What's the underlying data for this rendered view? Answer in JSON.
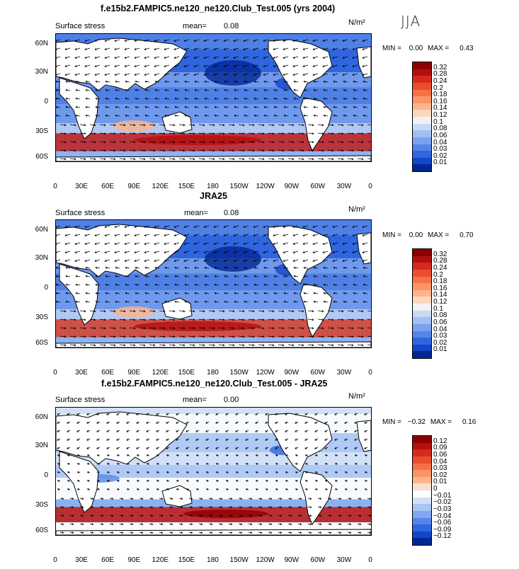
{
  "season": "JJA",
  "x_ticks": [
    "0",
    "30E",
    "60E",
    "90E",
    "120E",
    "150E",
    "180",
    "150W",
    "120W",
    "90W",
    "60W",
    "30W",
    "0"
  ],
  "y_ticks": [
    "60N",
    "30N",
    "0",
    "30S",
    "60S"
  ],
  "panels": [
    {
      "title": "f.e15b2.FAMPIC5.ne120_ne120.Club_Test.005 (yrs 2004)",
      "label": "Surface stress",
      "mean_label": "mean=",
      "mean_value": "0.08",
      "units": "N/m²",
      "min_label": "MIN =",
      "min_value": "0.00",
      "max_label": "MAX =",
      "max_value": "0.43",
      "colorbar_labels": [
        "0.32",
        "0.28",
        "0.24",
        "0.2",
        "0.18",
        "0.16",
        "0.14",
        "0.12",
        "0.1",
        "0.08",
        "0.06",
        "0.04",
        "0.03",
        "0.02",
        "0.01"
      ],
      "colors": [
        "#8b0000",
        "#b30f0f",
        "#d42b1e",
        "#ea4e2d",
        "#f57146",
        "#fb9466",
        "#fdb48d",
        "#fdd6bf",
        "#f3f2f3",
        "#c8d9f6",
        "#a0bff3",
        "#7aa2ee",
        "#5585e8",
        "#2f66df",
        "#1346c8",
        "#022793"
      ]
    },
    {
      "title": "JRA25",
      "label": "Surface stress",
      "mean_label": "mean=",
      "mean_value": "0.08",
      "units": "N/m²",
      "min_label": "MIN =",
      "min_value": "0.00",
      "max_label": "MAX =",
      "max_value": "0.70",
      "colorbar_labels": [
        "0.32",
        "0.28",
        "0.24",
        "0.2",
        "0.18",
        "0.16",
        "0.14",
        "0.12",
        "0.1",
        "0.08",
        "0.06",
        "0.04",
        "0.03",
        "0.02",
        "0.01"
      ],
      "colors": [
        "#8b0000",
        "#b30f0f",
        "#d42b1e",
        "#ea4e2d",
        "#f57146",
        "#fb9466",
        "#fdb48d",
        "#fdd6bf",
        "#f3f2f3",
        "#c8d9f6",
        "#a0bff3",
        "#7aa2ee",
        "#5585e8",
        "#2f66df",
        "#1346c8",
        "#022793"
      ]
    },
    {
      "title": "f.e15b2.FAMPIC5.ne120_ne120.Club_Test.005 - JRA25",
      "label": "Surface stress",
      "mean_label": "mean=",
      "mean_value": "0.00",
      "units": "N/m²",
      "min_label": "MIN =",
      "min_value": "−0.32",
      "max_label": "MAX =",
      "max_value": "0.16",
      "colorbar_labels": [
        "0.12",
        "0.09",
        "0.06",
        "0.04",
        "0.03",
        "0.02",
        "0.01",
        "0",
        "−0.01",
        "−0.02",
        "−0.03",
        "−0.04",
        "−0.06",
        "−0.09",
        "−0.12"
      ],
      "colors": [
        "#8b0000",
        "#b30f0f",
        "#d42b1e",
        "#ea4e2d",
        "#f57146",
        "#fb9466",
        "#fdb48d",
        "#f7e0d2",
        "#ffffff",
        "#d2e0f7",
        "#a9c5f3",
        "#80a8ee",
        "#5585e8",
        "#2f66df",
        "#1346c8",
        "#022793"
      ]
    }
  ]
}
